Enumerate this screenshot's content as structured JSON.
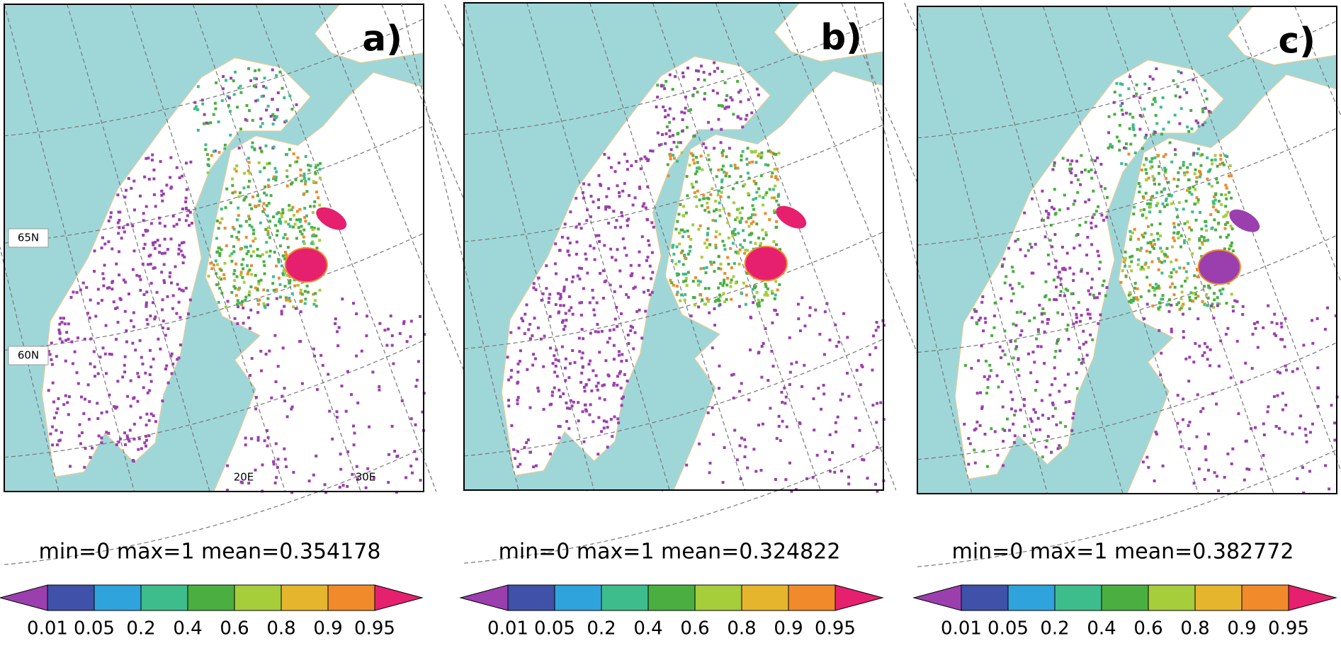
{
  "panels": [
    {
      "label": "a)",
      "summary": "min=0 max=1 mean=0.354178",
      "map_labels": [
        "65N",
        "60N",
        "20E",
        "30E"
      ]
    },
    {
      "label": "b)",
      "summary": "min=0 max=1 mean=0.324822"
    },
    {
      "label": "c)",
      "summary": "min=0 max=1 mean=0.382772"
    }
  ],
  "colorbar": {
    "colors": [
      "#9b3fae",
      "#3f51a8",
      "#2fa3dc",
      "#3dbd8c",
      "#4aaf40",
      "#a6cd3a",
      "#e6b52e",
      "#f08a2a",
      "#e6206e"
    ],
    "ticks": [
      0.01,
      0.05,
      0.2,
      0.4,
      0.6,
      0.8,
      0.9,
      0.95
    ]
  }
}
